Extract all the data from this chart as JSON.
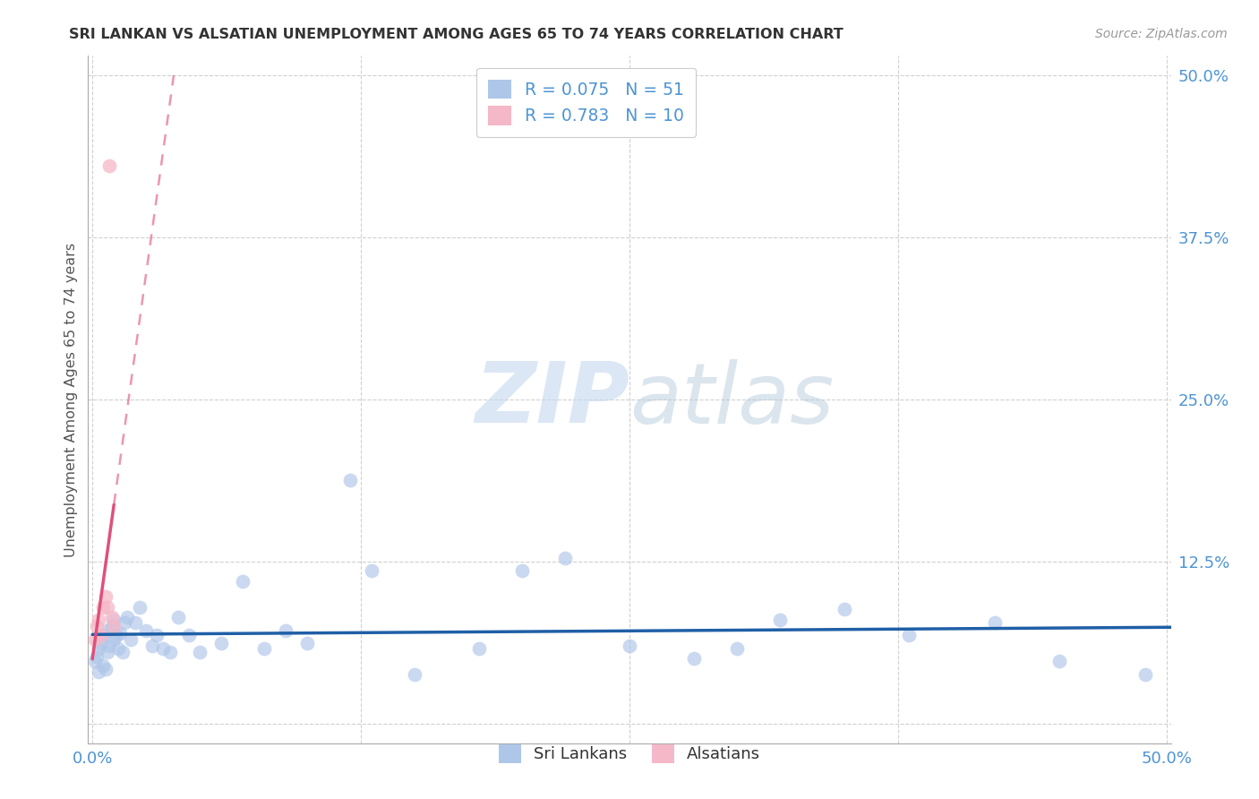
{
  "title": "SRI LANKAN VS ALSATIAN UNEMPLOYMENT AMONG AGES 65 TO 74 YEARS CORRELATION CHART",
  "source": "Source: ZipAtlas.com",
  "ylabel": "Unemployment Among Ages 65 to 74 years",
  "xlim": [
    -0.002,
    0.502
  ],
  "ylim": [
    -0.015,
    0.515
  ],
  "xticks": [
    0.0,
    0.125,
    0.25,
    0.375,
    0.5
  ],
  "yticks": [
    0.0,
    0.125,
    0.25,
    0.375,
    0.5
  ],
  "sri_lankans_color": "#aec6e8",
  "alsatians_color": "#f5b8c8",
  "sri_lankans_line_color": "#1f5fa6",
  "alsatians_line_color": "#e0507a",
  "legend_sri_r": "0.075",
  "legend_sri_n": "51",
  "legend_als_r": "0.783",
  "legend_als_n": "10",
  "grid_color": "#d0d0d0",
  "background_color": "#ffffff",
  "sri_x": [
    0.001,
    0.002,
    0.003,
    0.003,
    0.004,
    0.005,
    0.005,
    0.006,
    0.007,
    0.007,
    0.008,
    0.009,
    0.01,
    0.01,
    0.011,
    0.012,
    0.013,
    0.014,
    0.015,
    0.016,
    0.018,
    0.02,
    0.022,
    0.025,
    0.028,
    0.03,
    0.033,
    0.036,
    0.04,
    0.045,
    0.05,
    0.06,
    0.07,
    0.08,
    0.09,
    0.1,
    0.12,
    0.13,
    0.15,
    0.18,
    0.2,
    0.22,
    0.25,
    0.28,
    0.3,
    0.32,
    0.35,
    0.38,
    0.42,
    0.45,
    0.49
  ],
  "sri_y": [
    0.048,
    0.052,
    0.04,
    0.058,
    0.062,
    0.045,
    0.068,
    0.042,
    0.055,
    0.072,
    0.06,
    0.075,
    0.065,
    0.08,
    0.068,
    0.058,
    0.07,
    0.055,
    0.078,
    0.082,
    0.065,
    0.078,
    0.09,
    0.072,
    0.06,
    0.068,
    0.058,
    0.055,
    0.082,
    0.068,
    0.055,
    0.062,
    0.11,
    0.058,
    0.072,
    0.062,
    0.188,
    0.118,
    0.038,
    0.058,
    0.118,
    0.128,
    0.06,
    0.05,
    0.058,
    0.08,
    0.088,
    0.068,
    0.078,
    0.048,
    0.038
  ],
  "als_x": [
    0.001,
    0.002,
    0.003,
    0.004,
    0.005,
    0.006,
    0.007,
    0.008,
    0.009,
    0.01
  ],
  "als_y": [
    0.065,
    0.075,
    0.08,
    0.068,
    0.09,
    0.098,
    0.09,
    0.43,
    0.082,
    0.075
  ]
}
